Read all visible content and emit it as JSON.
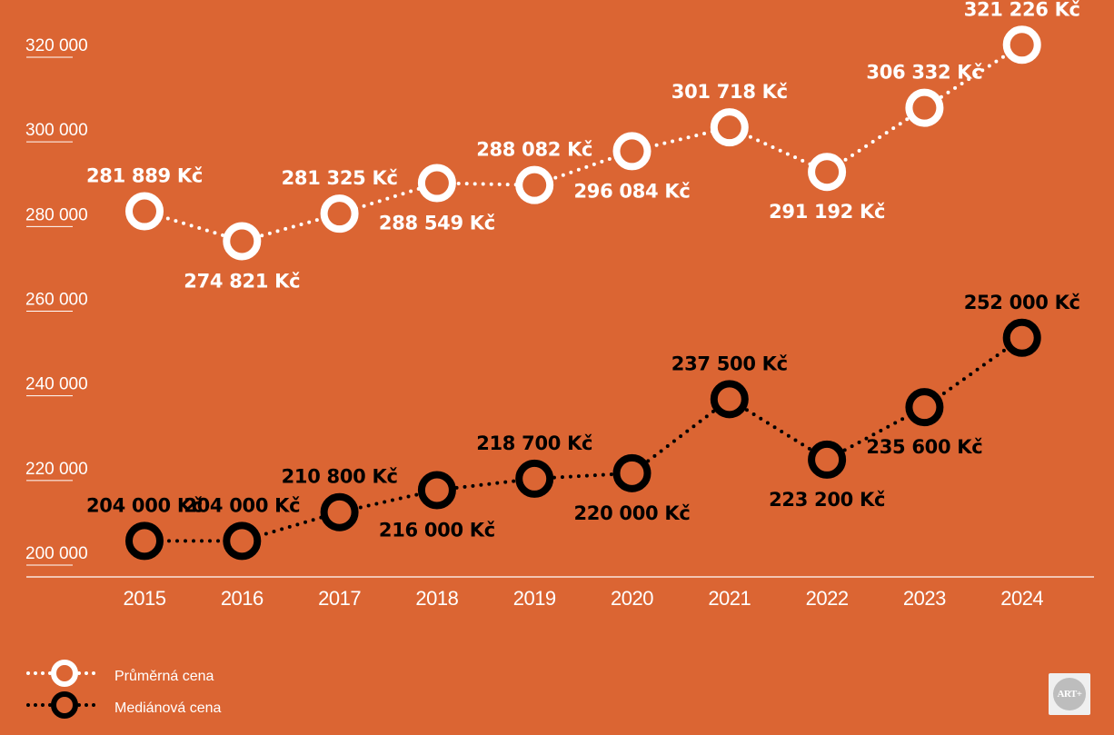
{
  "chart_data": {
    "type": "line",
    "categories": [
      "2015",
      "2016",
      "2017",
      "2018",
      "2019",
      "2020",
      "2021",
      "2022",
      "2023",
      "2024"
    ],
    "y_ticks": [
      "200 000",
      "220 000",
      "240 000",
      "260 000",
      "280 000",
      "300 000",
      "320 000"
    ],
    "y_tick_values": [
      200000,
      220000,
      240000,
      260000,
      280000,
      300000,
      320000
    ],
    "ylim": [
      200000,
      320000
    ],
    "grid": false,
    "legend_position": "bottom-left",
    "series": [
      {
        "name": "Průměrná cena",
        "color": "#FFFFFF",
        "values": [
          281889,
          274821,
          281325,
          288549,
          288082,
          296084,
          301718,
          291192,
          306332,
          321226
        ],
        "labels": [
          "281 889 Kč",
          "274 821 Kč",
          "281 325 Kč",
          "288 549 Kč",
          "288 082 Kč",
          "296 084 Kč",
          "301 718 Kč",
          "291 192 Kč",
          "306 332 Kč",
          "321 226 Kč"
        ],
        "label_placement": [
          "above",
          "below",
          "above",
          "below",
          "above",
          "below",
          "above",
          "below",
          "above",
          "above"
        ]
      },
      {
        "name": "Mediánová cena",
        "color": "#000000",
        "values": [
          204000,
          204000,
          210800,
          216000,
          218700,
          220000,
          237500,
          223200,
          235600,
          252000
        ],
        "labels": [
          "204 000 Kč",
          "204 000 Kč",
          "210 800 Kč",
          "216 000 Kč",
          "218 700 Kč",
          "220 000 Kč",
          "237 500 Kč",
          "223 200 Kč",
          "235 600 Kč",
          "252 000 Kč"
        ],
        "label_placement": [
          "above",
          "above",
          "above",
          "below",
          "above",
          "below",
          "above",
          "below",
          "below",
          "above"
        ]
      }
    ]
  },
  "logo": {
    "text": "ART+"
  }
}
